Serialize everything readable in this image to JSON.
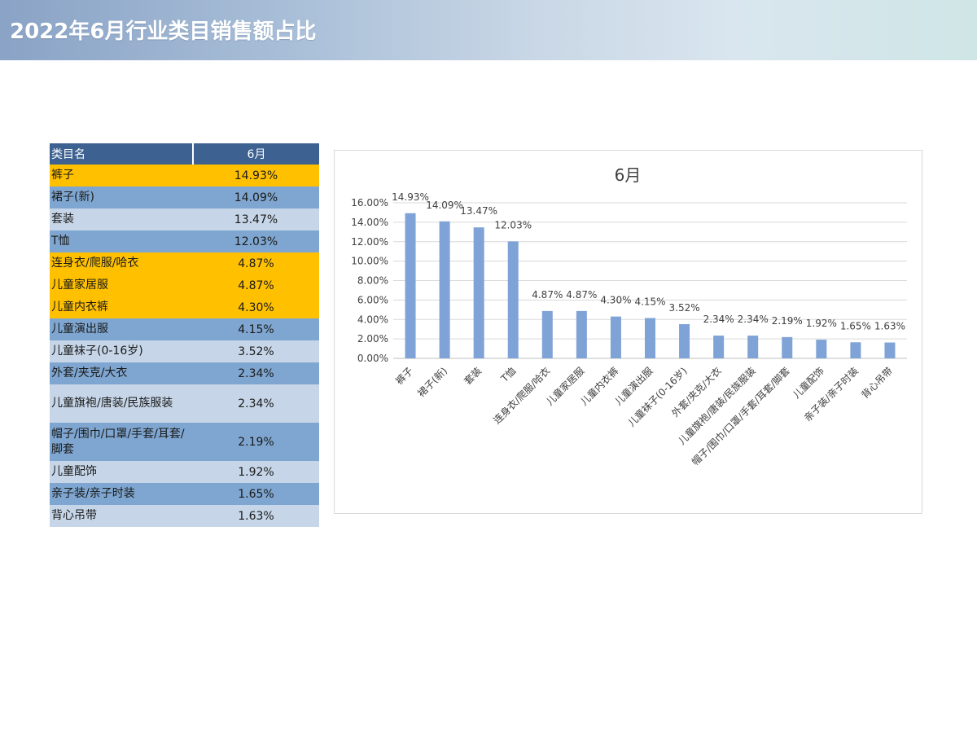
{
  "header": {
    "title": "2022年6月行业类目销售额占比"
  },
  "table": {
    "columns": [
      "类目名",
      "6月"
    ],
    "rows": [
      {
        "name": "裤子",
        "value": "14.93%",
        "highlight": true
      },
      {
        "name": "裙子(新)",
        "value": "14.09%",
        "highlight": false
      },
      {
        "name": "套装",
        "value": "13.47%",
        "highlight": false
      },
      {
        "name": "T恤",
        "value": "12.03%",
        "highlight": false
      },
      {
        "name": "连身衣/爬服/哈衣",
        "value": "4.87%",
        "highlight": true
      },
      {
        "name": "儿童家居服",
        "value": "4.87%",
        "highlight": true
      },
      {
        "name": "儿童内衣裤",
        "value": "4.30%",
        "highlight": true
      },
      {
        "name": "儿童演出服",
        "value": "4.15%",
        "highlight": false
      },
      {
        "name": "儿童袜子(0-16岁)",
        "value": "3.52%",
        "highlight": false
      },
      {
        "name": "外套/夹克/大衣",
        "value": "2.34%",
        "highlight": false
      },
      {
        "name": "儿童旗袍/唐装/民族服装",
        "value": "2.34%",
        "highlight": false
      },
      {
        "name": "帽子/围巾/口罩/手套/耳套/脚套",
        "value": "2.19%",
        "highlight": false
      },
      {
        "name": "儿童配饰",
        "value": "1.92%",
        "highlight": false
      },
      {
        "name": "亲子装/亲子时装",
        "value": "1.65%",
        "highlight": false
      },
      {
        "name": "背心吊带",
        "value": "1.63%",
        "highlight": false
      }
    ]
  },
  "colors": {
    "header_bg": "#3d6190",
    "highlight": "#ffc000",
    "row_dark": "#7ea6d0",
    "row_light": "#c6d6e8",
    "bar": "#7fa3d6"
  },
  "chart_data": {
    "type": "bar",
    "title": "6月",
    "categories": [
      "裤子",
      "裙子(新)",
      "套装",
      "T恤",
      "连身衣/爬服/哈衣",
      "儿童家居服",
      "儿童内衣裤",
      "儿童演出服",
      "儿童袜子(0-16岁)",
      "外套/夹克/大衣",
      "儿童旗袍/唐装/民族服装",
      "帽子/围巾/口罩/手套/耳套/脚套",
      "儿童配饰",
      "亲子装/亲子时装",
      "背心吊带"
    ],
    "values": [
      14.93,
      14.09,
      13.47,
      12.03,
      4.87,
      4.87,
      4.3,
      4.15,
      3.52,
      2.34,
      2.34,
      2.19,
      1.92,
      1.65,
      1.63
    ],
    "value_labels": [
      "14.93%",
      "14.09%",
      "13.47%",
      "12.03%",
      "4.87%",
      "4.87%",
      "4.30%",
      "4.15%",
      "3.52%",
      "2.34%",
      "2.34%",
      "2.19%",
      "1.92%",
      "1.65%",
      "1.63%"
    ],
    "yticks": [
      "0.00%",
      "2.00%",
      "4.00%",
      "6.00%",
      "8.00%",
      "10.00%",
      "12.00%",
      "14.00%",
      "16.00%"
    ],
    "ylim": [
      0,
      16
    ],
    "ystep": 2,
    "grid": true,
    "xlabel": "",
    "ylabel": ""
  }
}
